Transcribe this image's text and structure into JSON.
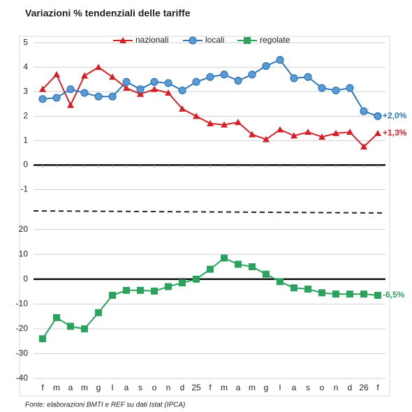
{
  "chart_data": [
    {
      "type": "line",
      "title": "Variazioni % tendenziali delle tariffe",
      "ylim": [
        -1.5,
        5
      ],
      "yticks": [
        -1,
        0,
        1,
        2,
        3,
        4,
        5
      ],
      "grid": true,
      "series": [
        {
          "name": "nazionali",
          "color": "#d42027",
          "marker": "triangle",
          "end_label": "+1,3%",
          "values": [
            3.1,
            3.7,
            2.45,
            3.65,
            4.0,
            3.6,
            3.15,
            2.9,
            3.1,
            2.95,
            2.3,
            2.0,
            1.7,
            1.65,
            1.75,
            1.25,
            1.05,
            1.45,
            1.2,
            1.35,
            1.15,
            1.3,
            1.35,
            0.75,
            1.3
          ]
        },
        {
          "name": "locali",
          "color": "#2e75b6",
          "marker": "circle",
          "end_label": "+2,0%",
          "values": [
            2.7,
            2.75,
            3.1,
            2.95,
            2.8,
            2.8,
            3.4,
            3.1,
            3.4,
            3.35,
            3.05,
            3.4,
            3.6,
            3.7,
            3.45,
            3.7,
            4.05,
            4.3,
            3.55,
            3.6,
            3.15,
            3.05,
            3.15,
            2.2,
            2.0
          ]
        }
      ]
    },
    {
      "type": "line",
      "source": "Fonte: elaborazioni BMTI e REF su dati Istat (IPCA)",
      "categories": [
        "f",
        "m",
        "a",
        "m",
        "g",
        "l",
        "a",
        "s",
        "o",
        "n",
        "d",
        "25",
        "f",
        "m",
        "a",
        "m",
        "g",
        "l",
        "a",
        "s",
        "o",
        "n",
        "d",
        "26",
        "f"
      ],
      "ylim": [
        -40,
        23
      ],
      "yticks": [
        -40,
        -30,
        -20,
        -10,
        0,
        10,
        20
      ],
      "grid": true,
      "series": [
        {
          "name": "regolate",
          "color": "#2ca25f",
          "marker": "square",
          "end_label": "-6,5%",
          "values": [
            -24,
            -15.5,
            -19,
            -20,
            -13.5,
            -6.5,
            -4.5,
            -4.5,
            -4.8,
            -3,
            -1.5,
            0,
            4,
            8.5,
            6,
            5,
            2,
            -1,
            -3.5,
            -4,
            -5.5,
            -6,
            -6,
            -6,
            -6.5
          ]
        }
      ]
    }
  ]
}
